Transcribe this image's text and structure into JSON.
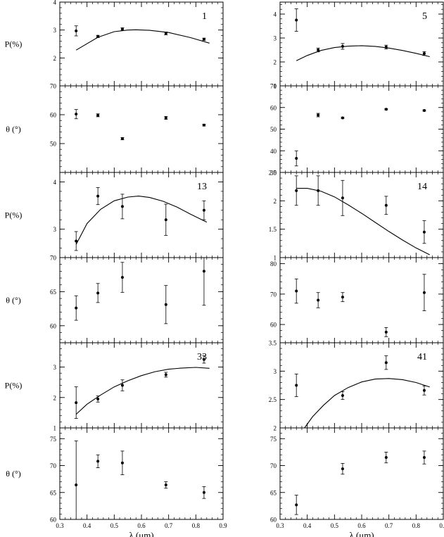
{
  "chart_data": [
    {
      "type": "scatter",
      "panel": "1-P",
      "label": "1",
      "ylabel": "P(%)",
      "xlabel": "",
      "xlim": [
        0.3,
        0.9
      ],
      "ylim": [
        1,
        4
      ],
      "yticks": [
        2,
        3,
        4
      ],
      "show_x_ticklabels": false,
      "points": [
        {
          "x": 0.36,
          "y": 2.97,
          "err": 0.18
        },
        {
          "x": 0.44,
          "y": 2.77,
          "err": 0.04
        },
        {
          "x": 0.53,
          "y": 3.03,
          "err": 0.05
        },
        {
          "x": 0.69,
          "y": 2.88,
          "err": 0.05
        },
        {
          "x": 0.83,
          "y": 2.67,
          "err": 0.04
        }
      ],
      "curve": {
        "x": [
          0.36,
          0.44,
          0.5,
          0.55,
          0.58,
          0.63,
          0.7,
          0.78,
          0.85
        ],
        "y": [
          2.28,
          2.74,
          2.94,
          3.0,
          3.01,
          2.99,
          2.91,
          2.73,
          2.53
        ]
      }
    },
    {
      "type": "scatter",
      "panel": "1-theta",
      "label": "",
      "ylabel": "θ (°)",
      "xlabel": "",
      "xlim": [
        0.3,
        0.9
      ],
      "ylim": [
        40,
        70
      ],
      "yticks": [
        50,
        60,
        70
      ],
      "show_x_ticklabels": false,
      "points": [
        {
          "x": 0.36,
          "y": 60.2,
          "err": 1.6
        },
        {
          "x": 0.44,
          "y": 59.8,
          "err": 0.5
        },
        {
          "x": 0.53,
          "y": 51.7,
          "err": 0.4
        },
        {
          "x": 0.69,
          "y": 58.9,
          "err": 0.5
        },
        {
          "x": 0.83,
          "y": 56.4,
          "err": 0.3
        }
      ]
    },
    {
      "type": "scatter",
      "panel": "13-P",
      "label": "13",
      "ylabel": "P(%)",
      "xlabel": "",
      "xlim": [
        0.3,
        0.9
      ],
      "ylim": [
        2.4,
        4.2
      ],
      "yticks": [
        3,
        4
      ],
      "show_x_ticklabels": false,
      "points": [
        {
          "x": 0.36,
          "y": 2.75,
          "err": 0.2
        },
        {
          "x": 0.44,
          "y": 3.7,
          "err": 0.18
        },
        {
          "x": 0.53,
          "y": 3.48,
          "err": 0.26
        },
        {
          "x": 0.69,
          "y": 3.2,
          "err": 0.33
        },
        {
          "x": 0.83,
          "y": 3.4,
          "err": 0.2
        }
      ],
      "curve": {
        "x": [
          0.36,
          0.4,
          0.45,
          0.5,
          0.55,
          0.59,
          0.63,
          0.68,
          0.73,
          0.78,
          0.84
        ],
        "y": [
          2.68,
          3.12,
          3.42,
          3.6,
          3.68,
          3.7,
          3.67,
          3.59,
          3.47,
          3.32,
          3.15
        ]
      }
    },
    {
      "type": "scatter",
      "panel": "13-theta",
      "label": "",
      "ylabel": "θ (°)",
      "xlabel": "",
      "xlim": [
        0.3,
        0.9
      ],
      "ylim": [
        57.5,
        70
      ],
      "yticks": [
        60,
        65,
        70
      ],
      "show_x_ticklabels": false,
      "points": [
        {
          "x": 0.36,
          "y": 62.6,
          "err": 1.8
        },
        {
          "x": 0.44,
          "y": 64.8,
          "err": 1.4
        },
        {
          "x": 0.53,
          "y": 67.1,
          "err": 2.2
        },
        {
          "x": 0.69,
          "y": 63.1,
          "err": 2.8
        },
        {
          "x": 0.83,
          "y": 68.0,
          "err": 5.0
        }
      ]
    },
    {
      "type": "scatter",
      "panel": "33-P",
      "label": "33",
      "ylabel": "P(%)",
      "xlabel": "",
      "xlim": [
        0.3,
        0.9
      ],
      "ylim": [
        1,
        3.8
      ],
      "yticks": [
        1,
        2,
        3
      ],
      "show_x_ticklabels": false,
      "points": [
        {
          "x": 0.36,
          "y": 1.83,
          "err": 0.52
        },
        {
          "x": 0.44,
          "y": 1.95,
          "err": 0.1
        },
        {
          "x": 0.53,
          "y": 2.4,
          "err": 0.18
        },
        {
          "x": 0.69,
          "y": 2.75,
          "err": 0.08
        },
        {
          "x": 0.83,
          "y": 3.25,
          "err": 0.12
        }
      ],
      "curve": {
        "x": [
          0.36,
          0.4,
          0.45,
          0.5,
          0.55,
          0.6,
          0.65,
          0.7,
          0.75,
          0.8,
          0.85
        ],
        "y": [
          1.45,
          1.78,
          2.08,
          2.35,
          2.55,
          2.72,
          2.85,
          2.93,
          2.97,
          2.99,
          2.96
        ]
      }
    },
    {
      "type": "scatter",
      "panel": "33-theta",
      "label": "",
      "ylabel": "θ (°)",
      "xlabel": "λ (μm)",
      "xlim": [
        0.3,
        0.9
      ],
      "ylim": [
        60,
        77
      ],
      "yticks": [
        60,
        65,
        70,
        75
      ],
      "xticks": [
        0.3,
        0.4,
        0.5,
        0.6,
        0.7,
        0.8,
        0.9
      ],
      "show_x_ticklabels": true,
      "points": [
        {
          "x": 0.36,
          "y": 66.4,
          "err": 8.2
        },
        {
          "x": 0.44,
          "y": 70.8,
          "err": 1.2
        },
        {
          "x": 0.53,
          "y": 70.5,
          "err": 2.2
        },
        {
          "x": 0.69,
          "y": 66.4,
          "err": 0.6
        },
        {
          "x": 0.83,
          "y": 65.0,
          "err": 1.1
        }
      ]
    },
    {
      "type": "scatter",
      "panel": "5-P",
      "label": "5",
      "ylabel": "",
      "xlabel": "",
      "xlim": [
        0.3,
        0.9
      ],
      "ylim": [
        1,
        4.5
      ],
      "yticks": [
        1,
        2,
        3,
        4
      ],
      "show_x_ticklabels": false,
      "points": [
        {
          "x": 0.36,
          "y": 3.75,
          "err": 0.47
        },
        {
          "x": 0.44,
          "y": 2.5,
          "err": 0.08
        },
        {
          "x": 0.53,
          "y": 2.65,
          "err": 0.12
        },
        {
          "x": 0.69,
          "y": 2.62,
          "err": 0.08
        },
        {
          "x": 0.83,
          "y": 2.35,
          "err": 0.08
        }
      ],
      "curve": {
        "x": [
          0.36,
          0.4,
          0.45,
          0.5,
          0.55,
          0.6,
          0.65,
          0.7,
          0.75,
          0.8,
          0.85
        ],
        "y": [
          2.05,
          2.27,
          2.48,
          2.6,
          2.66,
          2.68,
          2.65,
          2.58,
          2.48,
          2.36,
          2.22
        ]
      }
    },
    {
      "type": "scatter",
      "panel": "5-theta",
      "label": "",
      "ylabel": "",
      "xlabel": "",
      "xlim": [
        0.3,
        0.9
      ],
      "ylim": [
        30,
        70
      ],
      "yticks": [
        30,
        40,
        50,
        60,
        70
      ],
      "show_x_ticklabels": false,
      "points": [
        {
          "x": 0.36,
          "y": 36.5,
          "err": 3.5
        },
        {
          "x": 0.44,
          "y": 56.5,
          "err": 0.8
        },
        {
          "x": 0.53,
          "y": 55.2,
          "err": 0.3
        },
        {
          "x": 0.69,
          "y": 59.2,
          "err": 0.3
        },
        {
          "x": 0.83,
          "y": 58.6,
          "err": 0.3
        }
      ]
    },
    {
      "type": "scatter",
      "panel": "14-P",
      "label": "14",
      "ylabel": "",
      "xlabel": "",
      "xlim": [
        0.3,
        0.9
      ],
      "ylim": [
        1,
        2.5
      ],
      "yticks": [
        1,
        1.5,
        2,
        2.5
      ],
      "show_x_ticklabels": false,
      "points": [
        {
          "x": 0.36,
          "y": 2.18,
          "err": 0.26
        },
        {
          "x": 0.44,
          "y": 2.18,
          "err": 0.26
        },
        {
          "x": 0.53,
          "y": 2.05,
          "err": 0.31
        },
        {
          "x": 0.69,
          "y": 1.92,
          "err": 0.16
        },
        {
          "x": 0.83,
          "y": 1.45,
          "err": 0.2
        }
      ],
      "curve": {
        "x": [
          0.36,
          0.4,
          0.45,
          0.5,
          0.55,
          0.6,
          0.65,
          0.7,
          0.75,
          0.8,
          0.85
        ],
        "y": [
          2.22,
          2.22,
          2.17,
          2.07,
          1.93,
          1.78,
          1.62,
          1.46,
          1.31,
          1.17,
          1.05
        ]
      }
    },
    {
      "type": "scatter",
      "panel": "14-theta",
      "label": "",
      "ylabel": "",
      "xlabel": "",
      "xlim": [
        0.3,
        0.9
      ],
      "ylim": [
        54,
        82
      ],
      "yticks": [
        60,
        70,
        80
      ],
      "show_x_ticklabels": false,
      "points": [
        {
          "x": 0.36,
          "y": 71.0,
          "err": 4.0
        },
        {
          "x": 0.44,
          "y": 68.0,
          "err": 2.5
        },
        {
          "x": 0.53,
          "y": 69.0,
          "err": 1.5
        },
        {
          "x": 0.69,
          "y": 57.5,
          "err": 1.5
        },
        {
          "x": 0.83,
          "y": 70.5,
          "err": 6.0
        }
      ]
    },
    {
      "type": "scatter",
      "panel": "41-P",
      "label": "41",
      "ylabel": "",
      "xlabel": "",
      "xlim": [
        0.3,
        0.9
      ],
      "ylim": [
        2,
        3.5
      ],
      "yticks": [
        2,
        2.5,
        3,
        3.5
      ],
      "show_x_ticklabels": false,
      "points": [
        {
          "x": 0.36,
          "y": 2.75,
          "err": 0.2
        },
        {
          "x": 0.53,
          "y": 2.57,
          "err": 0.07
        },
        {
          "x": 0.69,
          "y": 3.15,
          "err": 0.12
        },
        {
          "x": 0.83,
          "y": 2.66,
          "err": 0.08
        }
      ],
      "curve": {
        "x": [
          0.39,
          0.42,
          0.46,
          0.5,
          0.55,
          0.6,
          0.65,
          0.7,
          0.75,
          0.8,
          0.85
        ],
        "y": [
          2.0,
          2.2,
          2.4,
          2.57,
          2.71,
          2.81,
          2.86,
          2.87,
          2.85,
          2.8,
          2.72
        ]
      }
    },
    {
      "type": "scatter",
      "panel": "41-theta",
      "label": "",
      "ylabel": "",
      "xlabel": "λ (μm)",
      "xlim": [
        0.3,
        0.9
      ],
      "ylim": [
        60,
        77
      ],
      "yticks": [
        60,
        65,
        70,
        75
      ],
      "xticks": [
        0.3,
        0.4,
        0.5,
        0.6,
        0.7,
        0.8,
        0.9
      ],
      "show_x_ticklabels": true,
      "points": [
        {
          "x": 0.36,
          "y": 62.7,
          "err": 1.8
        },
        {
          "x": 0.53,
          "y": 69.4,
          "err": 1.0
        },
        {
          "x": 0.69,
          "y": 71.5,
          "err": 1.0
        },
        {
          "x": 0.83,
          "y": 71.5,
          "err": 1.2
        }
      ]
    }
  ]
}
